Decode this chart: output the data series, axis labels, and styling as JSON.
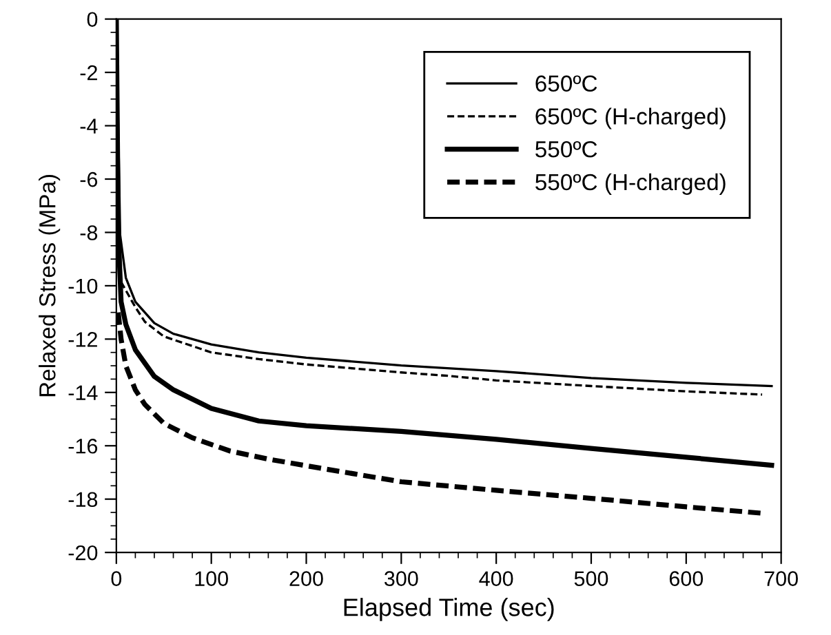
{
  "chart_data": {
    "type": "line",
    "xlabel": "Elapsed Time (sec)",
    "ylabel": "Relaxed Stress (MPa)",
    "xlim": [
      0,
      700
    ],
    "xticks": [
      0,
      100,
      200,
      300,
      400,
      500,
      600,
      700
    ],
    "ylim": [
      -20,
      0
    ],
    "yticks": [
      -20,
      -18,
      -16,
      -14,
      -12,
      -10,
      -8,
      -6,
      -4,
      -2,
      0
    ],
    "grid": false,
    "legend": "top right",
    "marker": "none",
    "series": [
      {
        "name": "650ºC",
        "color": "#000000",
        "line_style": "solid",
        "x": [
          0,
          4,
          10,
          20,
          40,
          60,
          100,
          150,
          200,
          300,
          400,
          500,
          600,
          690
        ],
        "values": [
          0,
          -8.1,
          -9.7,
          -10.6,
          -11.4,
          -11.8,
          -12.2,
          -12.5,
          -12.7,
          -12.99,
          -13.2,
          -13.46,
          -13.64,
          -13.76
        ]
      },
      {
        "name": "650ºC (H-charged)",
        "color": "#000000",
        "line_style": "dashed",
        "x": [
          5,
          20,
          30,
          50,
          100,
          150,
          200,
          300,
          350,
          400,
          500,
          600,
          680
        ],
        "values": [
          -9.86,
          -10.8,
          -11.35,
          -11.9,
          -12.5,
          -12.75,
          -12.95,
          -13.25,
          -13.38,
          -13.55,
          -13.76,
          -13.96,
          -14.08
        ]
      },
      {
        "name": "550ºC",
        "color": "#000000",
        "line_style": "solid",
        "x": [
          0,
          2,
          5,
          10,
          20,
          40,
          60,
          100,
          150,
          200,
          300,
          400,
          500,
          600,
          690
        ],
        "values": [
          0,
          -8,
          -10.6,
          -11.45,
          -12.4,
          -13.4,
          -13.9,
          -14.6,
          -15.07,
          -15.25,
          -15.46,
          -15.76,
          -16.1,
          -16.43,
          -16.73
        ]
      },
      {
        "name": "550ºC (H-charged)",
        "color": "#000000",
        "line_style": "dashed",
        "x": [
          2,
          5,
          10,
          20,
          30,
          50,
          80,
          120,
          160,
          200,
          250,
          300,
          400,
          500,
          600,
          680
        ],
        "values": [
          -11,
          -12,
          -13,
          -13.9,
          -14.45,
          -15.16,
          -15.7,
          -16.2,
          -16.5,
          -16.75,
          -17.05,
          -17.35,
          -17.67,
          -17.97,
          -18.29,
          -18.53
        ]
      }
    ]
  }
}
